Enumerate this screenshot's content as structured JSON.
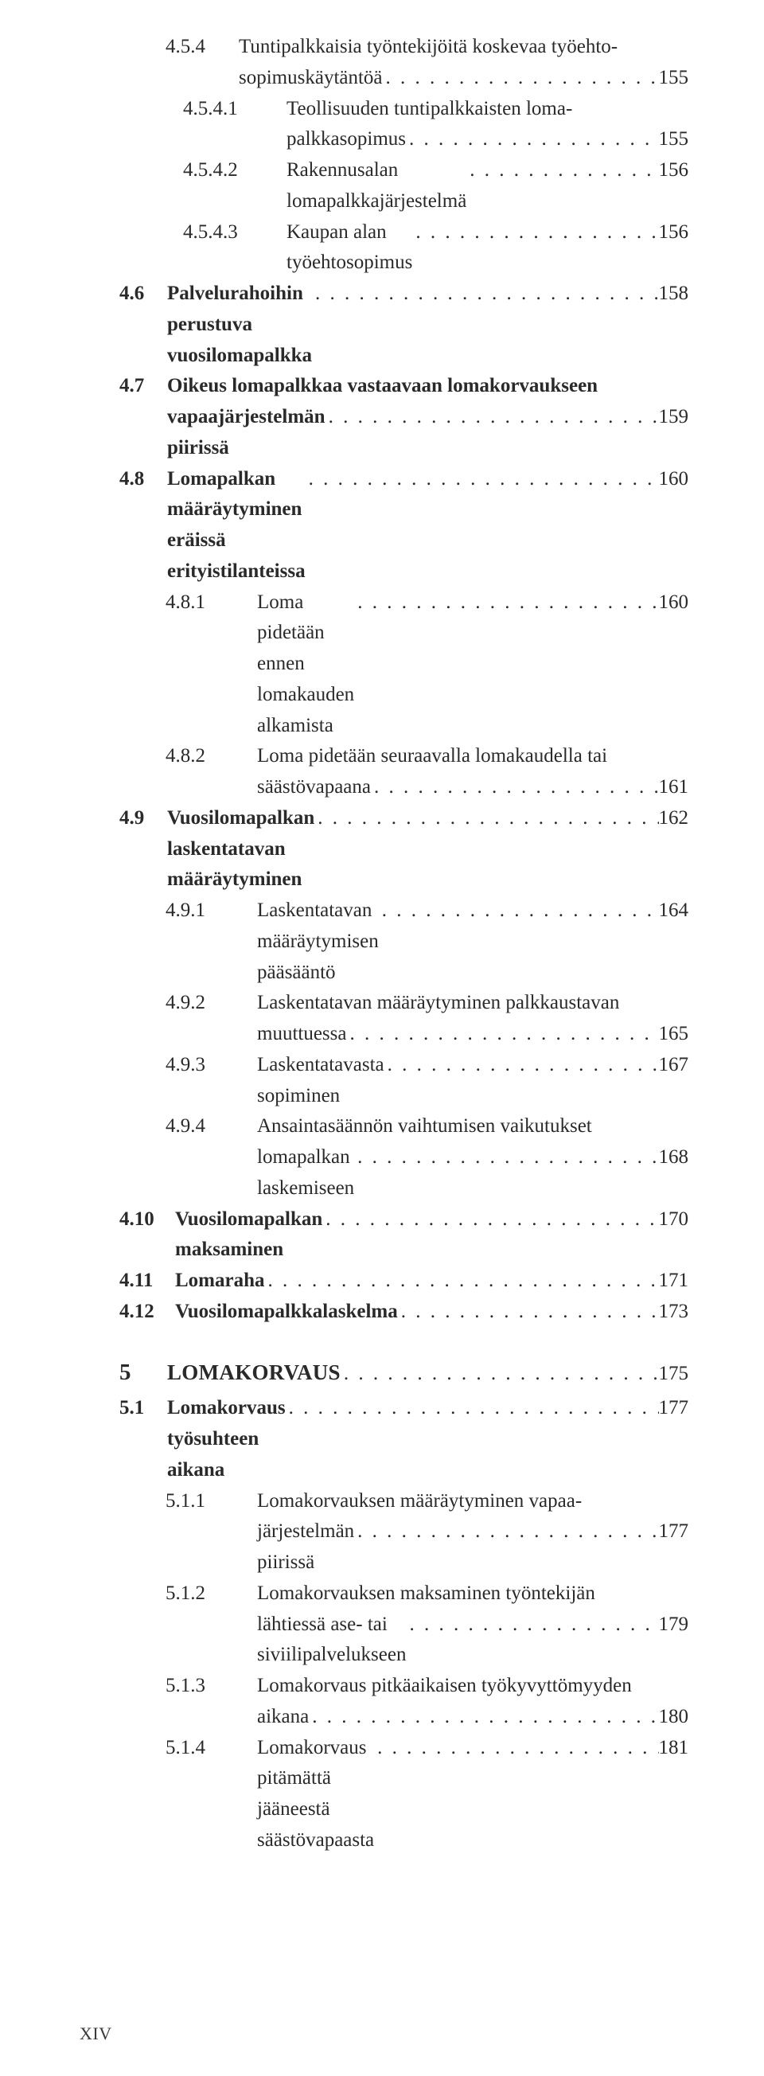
{
  "entries": [
    {
      "lvl": "l3",
      "num": "4.5.4",
      "title_lines": [
        "Tuntipalkkaisia työntekijöitä koskevaa työehto-",
        "sopimuskäytäntöä"
      ],
      "page": "155"
    },
    {
      "lvl": "l3",
      "num": "4.5.4.1",
      "title_lines": [
        "Teollisuuden tuntipalkkaisten loma-",
        "palkkasopimus"
      ],
      "page": "155",
      "sub": true
    },
    {
      "lvl": "l3",
      "num": "4.5.4.2",
      "title_lines": [
        "Rakennusalan lomapalkkajärjestelmä"
      ],
      "page": "156",
      "sub": true
    },
    {
      "lvl": "l3",
      "num": "4.5.4.3",
      "title_lines": [
        "Kaupan alan työehtosopimus"
      ],
      "page": "156",
      "sub": true
    },
    {
      "lvl": "l1",
      "num": "4.6",
      "title_lines": [
        "Palvelurahoihin perustuva vuosilomapalkka"
      ],
      "page": "158",
      "bold": true
    },
    {
      "lvl": "l1",
      "num": "4.7",
      "title_lines": [
        "Oikeus lomapalkkaa vastaavaan lomakorvaukseen",
        "vapaajärjestelmän piirissä"
      ],
      "page": "159",
      "bold": true
    },
    {
      "lvl": "l1",
      "num": "4.8",
      "title_lines": [
        "Lomapalkan määräytyminen eräissä erityistilanteissa"
      ],
      "page": "160",
      "bold": true
    },
    {
      "lvl": "l2",
      "num": "4.8.1",
      "title_lines": [
        "Loma pidetään ennen lomakauden alkamista"
      ],
      "page": "160"
    },
    {
      "lvl": "l2",
      "num": "4.8.2",
      "title_lines": [
        "Loma pidetään seuraavalla lomakaudella tai",
        "säästövapaana"
      ],
      "page": "161"
    },
    {
      "lvl": "l1",
      "num": "4.9",
      "title_lines": [
        "Vuosilomapalkan laskentatavan määräytyminen"
      ],
      "page": "162",
      "bold": true
    },
    {
      "lvl": "l2",
      "num": "4.9.1",
      "title_lines": [
        "Laskentatavan määräytymisen pääsääntö"
      ],
      "page": "164"
    },
    {
      "lvl": "l2",
      "num": "4.9.2",
      "title_lines": [
        "Laskentatavan määräytyminen palkkaustavan",
        "muuttuessa"
      ],
      "page": "165"
    },
    {
      "lvl": "l2",
      "num": "4.9.3",
      "title_lines": [
        "Laskentatavasta sopiminen"
      ],
      "page": "167"
    },
    {
      "lvl": "l2",
      "num": "4.9.4",
      "title_lines": [
        "Ansaintasäännön vaihtumisen vaikutukset",
        "lomapalkan laskemiseen"
      ],
      "page": "168"
    },
    {
      "lvl": "l1",
      "num": "4.10",
      "title_lines": [
        "Vuosilomapalkan maksaminen"
      ],
      "page": "170",
      "bold": true,
      "widenum": true
    },
    {
      "lvl": "l1",
      "num": "4.11",
      "title_lines": [
        "Lomaraha"
      ],
      "page": "171",
      "bold": true,
      "widenum": true
    },
    {
      "lvl": "l1",
      "num": "4.12",
      "title_lines": [
        "Vuosilomapalkkalaskelma"
      ],
      "page": "173",
      "bold": true,
      "widenum": true
    }
  ],
  "chapter": {
    "num": "5",
    "title": "LOMAKORVAUS",
    "page": "175"
  },
  "entries2": [
    {
      "lvl": "l1",
      "num": "5.1",
      "title_lines": [
        "Lomakorvaus työsuhteen aikana"
      ],
      "page": "177",
      "bold": true
    },
    {
      "lvl": "l2",
      "num": "5.1.1",
      "title_lines": [
        "Lomakorvauksen määräytyminen vapaa-",
        "järjestelmän piirissä"
      ],
      "page": "177"
    },
    {
      "lvl": "l2",
      "num": "5.1.2",
      "title_lines": [
        "Lomakorvauksen maksaminen työntekijän",
        "lähtiessä ase- tai siviilipalvelukseen"
      ],
      "page": "179"
    },
    {
      "lvl": "l2",
      "num": "5.1.3",
      "title_lines": [
        "Lomakorvaus pitkäaikaisen työkyvyttömyyden",
        "aikana"
      ],
      "page": "180"
    },
    {
      "lvl": "l2",
      "num": "5.1.4",
      "title_lines": [
        "Lomakorvaus pitämättä jääneestä säästövapaasta"
      ],
      "page": "181"
    }
  ],
  "footer": "XIV",
  "dots": ". . . . . . . . . . . . . . . . . . . . . . . . . . . . . . . . . . . . . . . . . . . . . . . . . . . . . . . . . . . . . . . . . . . . . . . . . . . . . . . . . ."
}
